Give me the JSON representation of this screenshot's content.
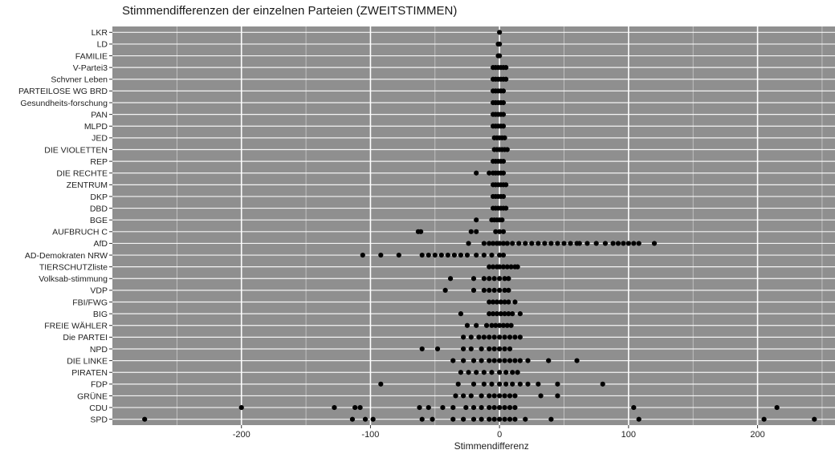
{
  "chart_data": {
    "type": "scatter",
    "title": "Stimmendifferenzen der einzelnen Parteien (ZWEITSTIMMEN)",
    "xlabel": "Stimmendifferenz",
    "ylabel": "",
    "xlim": [
      -300,
      260
    ],
    "x_ticks": [
      -200,
      -100,
      0,
      100,
      200
    ],
    "x_tick_labels": [
      "-200",
      "-100",
      "0",
      "100",
      "200"
    ],
    "grid": true,
    "legend": "none",
    "point_color": "#000000",
    "panel_color": "#8f8f8f",
    "grid_color": "#ffffff",
    "categories": [
      "LKR",
      "LD",
      "FAMILIE",
      "V-Partei3",
      "Schvner Leben",
      "PARTEILOSE WG BRD",
      "Gesundheits-forschung",
      "PAN",
      "MLPD",
      "JED",
      "DIE VIOLETTEN",
      "REP",
      "DIE RECHTE",
      "ZENTRUM",
      "DKP",
      "DBD",
      "BGE",
      "AUFBRUCH C",
      "AfD",
      "AD-Demokraten NRW",
      "TIERSCHUTZliste",
      "Volksab-stimmung",
      "VDP",
      "FBI/FWG",
      "BIG",
      "FREIE WÄHLER",
      "Die PARTEI",
      "NPD",
      "DIE LINKE",
      "PIRATEN",
      "FDP",
      "GRÜNE",
      "CDU",
      "SPD"
    ],
    "series": [
      {
        "category": "LKR",
        "x": [
          0
        ]
      },
      {
        "category": "LD",
        "x": [
          -1,
          0
        ]
      },
      {
        "category": "FAMILIE",
        "x": [
          -1,
          0
        ]
      },
      {
        "category": "V-Partei3",
        "x": [
          -5,
          -3,
          -1,
          1,
          3,
          5
        ]
      },
      {
        "category": "Schvner Leben",
        "x": [
          -5,
          -3,
          -1,
          1,
          3,
          5
        ]
      },
      {
        "category": "PARTEILOSE WG BRD",
        "x": [
          -5,
          -3,
          -1,
          1,
          3
        ]
      },
      {
        "category": "Gesundheits-forschung",
        "x": [
          -5,
          -3,
          -1,
          1,
          3
        ]
      },
      {
        "category": "PAN",
        "x": [
          -5,
          -3,
          -1,
          1,
          3
        ]
      },
      {
        "category": "MLPD",
        "x": [
          -5,
          -3,
          -1,
          1,
          3
        ]
      },
      {
        "category": "JED",
        "x": [
          -4,
          -2,
          0,
          2,
          4
        ]
      },
      {
        "category": "DIE VIOLETTEN",
        "x": [
          -4,
          -2,
          0,
          2,
          4,
          6
        ]
      },
      {
        "category": "REP",
        "x": [
          -5,
          -3,
          -1,
          1,
          3
        ]
      },
      {
        "category": "DIE RECHTE",
        "x": [
          -18,
          -8,
          -5,
          -3,
          -1,
          1,
          3
        ]
      },
      {
        "category": "ZENTRUM",
        "x": [
          -5,
          -3,
          -1,
          1,
          3,
          5
        ]
      },
      {
        "category": "DKP",
        "x": [
          -5,
          -3,
          -1,
          1,
          3
        ]
      },
      {
        "category": "DBD",
        "x": [
          -5,
          -3,
          -1,
          1,
          3,
          5
        ]
      },
      {
        "category": "BGE",
        "x": [
          -18,
          -6,
          -4,
          -2,
          0,
          2
        ]
      },
      {
        "category": "AUFBRUCH C",
        "x": [
          -63,
          -61,
          -22,
          -18,
          -3,
          0,
          3
        ]
      },
      {
        "category": "AfD",
        "x": [
          -24,
          -12,
          -8,
          -5,
          -2,
          0,
          3,
          6,
          10,
          15,
          20,
          25,
          30,
          35,
          40,
          45,
          50,
          55,
          60,
          62,
          68,
          75,
          82,
          88,
          92,
          96,
          100,
          104,
          108,
          120
        ]
      },
      {
        "category": "AD-Demokraten NRW",
        "x": [
          -106,
          -92,
          -78,
          -60,
          -55,
          -50,
          -45,
          -40,
          -35,
          -30,
          -25,
          -18,
          -12,
          -6,
          0,
          3
        ]
      },
      {
        "category": "TIERSCHUTZliste",
        "x": [
          -8,
          -5,
          -2,
          0,
          3,
          6,
          9,
          12,
          14
        ]
      },
      {
        "category": "Volksab-stimmung",
        "x": [
          -38,
          -20,
          -12,
          -8,
          -4,
          0,
          4,
          7
        ]
      },
      {
        "category": "VDP",
        "x": [
          -42,
          -20,
          -12,
          -8,
          -4,
          0,
          4,
          7
        ]
      },
      {
        "category": "FBI/FWG",
        "x": [
          -8,
          -5,
          -2,
          1,
          4,
          7,
          12
        ]
      },
      {
        "category": "BIG",
        "x": [
          -30,
          -8,
          -5,
          -2,
          1,
          4,
          7,
          10,
          16
        ]
      },
      {
        "category": "FREIE WÄHLER",
        "x": [
          -25,
          -18,
          -10,
          -6,
          -3,
          0,
          3,
          6,
          9
        ]
      },
      {
        "category": "Die PARTEI",
        "x": [
          -28,
          -22,
          -16,
          -12,
          -8,
          -4,
          0,
          4,
          8,
          12,
          16
        ]
      },
      {
        "category": "NPD",
        "x": [
          -60,
          -48,
          -28,
          -22,
          -14,
          -8,
          -4,
          0,
          4,
          8
        ]
      },
      {
        "category": "DIE LINKE",
        "x": [
          -36,
          -28,
          -20,
          -14,
          -8,
          -4,
          0,
          4,
          8,
          12,
          16,
          22,
          38,
          60
        ]
      },
      {
        "category": "PIRATEN",
        "x": [
          -30,
          -24,
          -18,
          -12,
          -6,
          0,
          5,
          10,
          14
        ]
      },
      {
        "category": "FDP",
        "x": [
          -92,
          -32,
          -20,
          -12,
          -6,
          0,
          5,
          10,
          16,
          22,
          30,
          45,
          80
        ]
      },
      {
        "category": "GRÜNE",
        "x": [
          -34,
          -28,
          -22,
          -14,
          -8,
          -4,
          0,
          4,
          8,
          12,
          32,
          45
        ]
      },
      {
        "category": "CDU",
        "x": [
          -200,
          -128,
          -112,
          -108,
          -62,
          -55,
          -44,
          -36,
          -26,
          -20,
          -14,
          -8,
          -4,
          0,
          4,
          8,
          12,
          104,
          215
        ]
      },
      {
        "category": "SPD",
        "x": [
          -275,
          -114,
          -104,
          -98,
          -60,
          -52,
          -36,
          -28,
          -20,
          -14,
          -8,
          -4,
          0,
          4,
          8,
          12,
          20,
          40,
          108,
          205,
          244
        ]
      }
    ]
  }
}
